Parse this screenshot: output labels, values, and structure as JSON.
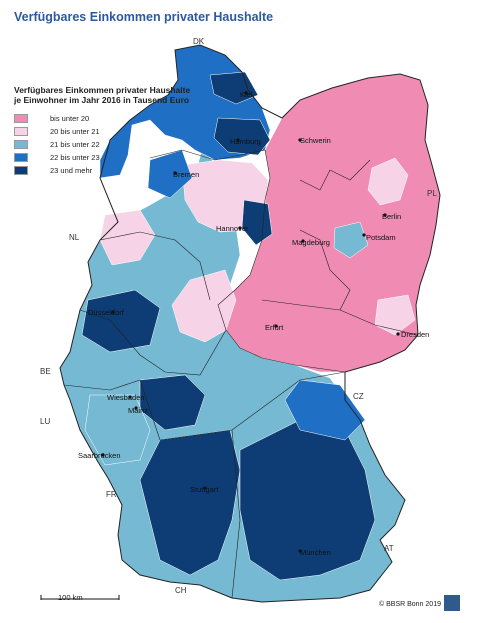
{
  "title": "Verfügbares Einkommen privater Haushalte",
  "legend": {
    "title_line1": "Verfügbares Einkommen privater Haushalte",
    "title_line2": "je Einwohner im Jahr 2016 in Tausend Euro",
    "classes": [
      {
        "label": "bis unter 20",
        "color": "#f08cb4"
      },
      {
        "label": "20 bis unter 21",
        "color": "#f6d3e6"
      },
      {
        "label": "21 bis unter 22",
        "color": "#76b9d3"
      },
      {
        "label": "22 bis unter 23",
        "color": "#1f6fc4"
      },
      {
        "label": "23 und mehr",
        "color": "#0e3d75"
      }
    ]
  },
  "neighbors": {
    "dk": "DK",
    "pl": "PL",
    "nl": "NL",
    "be": "BE",
    "lu": "LU",
    "fr": "FR",
    "ch": "CH",
    "at": "AT",
    "cz": "CZ"
  },
  "cities": {
    "kiel": "Kiel",
    "hamburg": "Hamburg",
    "schwerin": "Schwerin",
    "bremen": "Bremen",
    "berlin": "Berlin",
    "potsdam": "Potsdam",
    "hannover": "Hannover",
    "magdeburg": "Magdeburg",
    "duesseldorf": "Düsseldorf",
    "erfurt": "Erfurt",
    "dresden": "Dresden",
    "wiesbaden": "Wiesbaden",
    "mainz": "Mainz",
    "saarbruecken": "Saarbrücken",
    "stuttgart": "Stuttgart",
    "muenchen": "München"
  },
  "scale_label": "100 km",
  "credit": "© BBSR Bonn 2019"
}
